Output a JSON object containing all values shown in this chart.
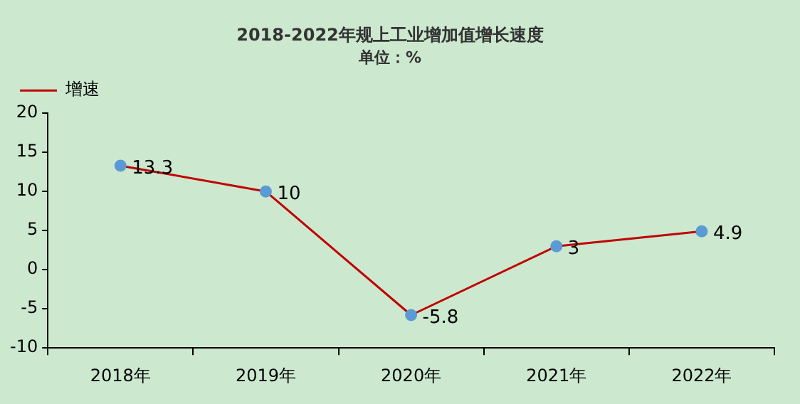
{
  "chart_data": {
    "type": "line",
    "title": "2018-2022年规上工业增加值增长速度",
    "subtitle": "单位：%",
    "categories": [
      "2018年",
      "2019年",
      "2020年",
      "2021年",
      "2022年"
    ],
    "series": [
      {
        "name": "增速",
        "color": "#c00000",
        "values": [
          13.3,
          10,
          -5.8,
          3,
          4.9
        ]
      }
    ],
    "ylim": [
      -10,
      20
    ],
    "yticks": [
      -10,
      -5,
      0,
      5,
      10,
      15,
      20
    ],
    "grid": false,
    "legend": "top left",
    "marker": "circle",
    "line_style": "solid",
    "data_labels": true
  }
}
